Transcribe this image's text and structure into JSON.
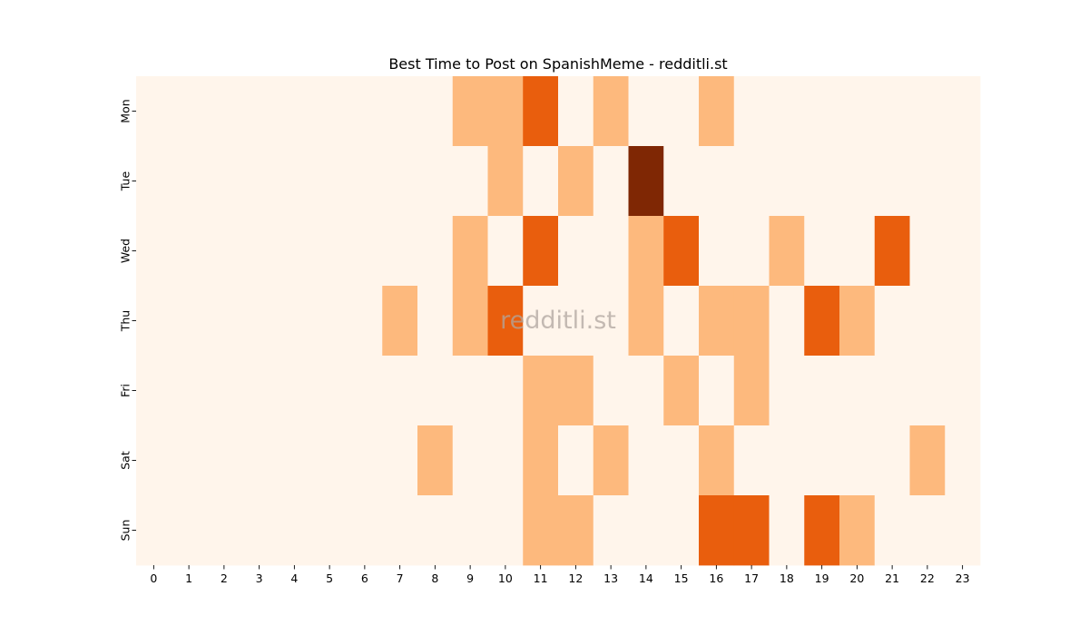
{
  "chart_data": {
    "type": "heatmap",
    "title": "Best Time to Post on SpanishMeme - redditli.st",
    "watermark": "redditli.st",
    "x_categories": [
      "0",
      "1",
      "2",
      "3",
      "4",
      "5",
      "6",
      "7",
      "8",
      "9",
      "10",
      "11",
      "12",
      "13",
      "14",
      "15",
      "16",
      "17",
      "18",
      "19",
      "20",
      "21",
      "22",
      "23"
    ],
    "y_categories": [
      "Mon",
      "Tue",
      "Wed",
      "Thu",
      "Fri",
      "Sat",
      "Sun"
    ],
    "values": [
      [
        0,
        0,
        0,
        0,
        0,
        0,
        0,
        0,
        0,
        1,
        1,
        2,
        0,
        1,
        0,
        0,
        1,
        0,
        0,
        0,
        0,
        0,
        0,
        0
      ],
      [
        0,
        0,
        0,
        0,
        0,
        0,
        0,
        0,
        0,
        0,
        1,
        0,
        1,
        0,
        3,
        0,
        0,
        0,
        0,
        0,
        0,
        0,
        0,
        0
      ],
      [
        0,
        0,
        0,
        0,
        0,
        0,
        0,
        0,
        0,
        1,
        0,
        2,
        0,
        0,
        1,
        2,
        0,
        0,
        1,
        0,
        0,
        2,
        0,
        0
      ],
      [
        0,
        0,
        0,
        0,
        0,
        0,
        0,
        1,
        0,
        1,
        2,
        0,
        0,
        0,
        1,
        0,
        1,
        1,
        0,
        2,
        1,
        0,
        0,
        0
      ],
      [
        0,
        0,
        0,
        0,
        0,
        0,
        0,
        0,
        0,
        0,
        0,
        1,
        1,
        0,
        0,
        1,
        0,
        1,
        0,
        0,
        0,
        0,
        0,
        0
      ],
      [
        0,
        0,
        0,
        0,
        0,
        0,
        0,
        0,
        1,
        0,
        0,
        1,
        0,
        1,
        0,
        0,
        1,
        0,
        0,
        0,
        0,
        0,
        1,
        0
      ],
      [
        0,
        0,
        0,
        0,
        0,
        0,
        0,
        0,
        0,
        0,
        0,
        1,
        1,
        0,
        0,
        0,
        2,
        2,
        0,
        2,
        1,
        0,
        0,
        0
      ]
    ],
    "value_range": [
      0,
      3
    ],
    "colormap": [
      "#fff5eb",
      "#fdb97d",
      "#e95e0d",
      "#7f2704"
    ],
    "colorbar": false,
    "grid": false
  }
}
